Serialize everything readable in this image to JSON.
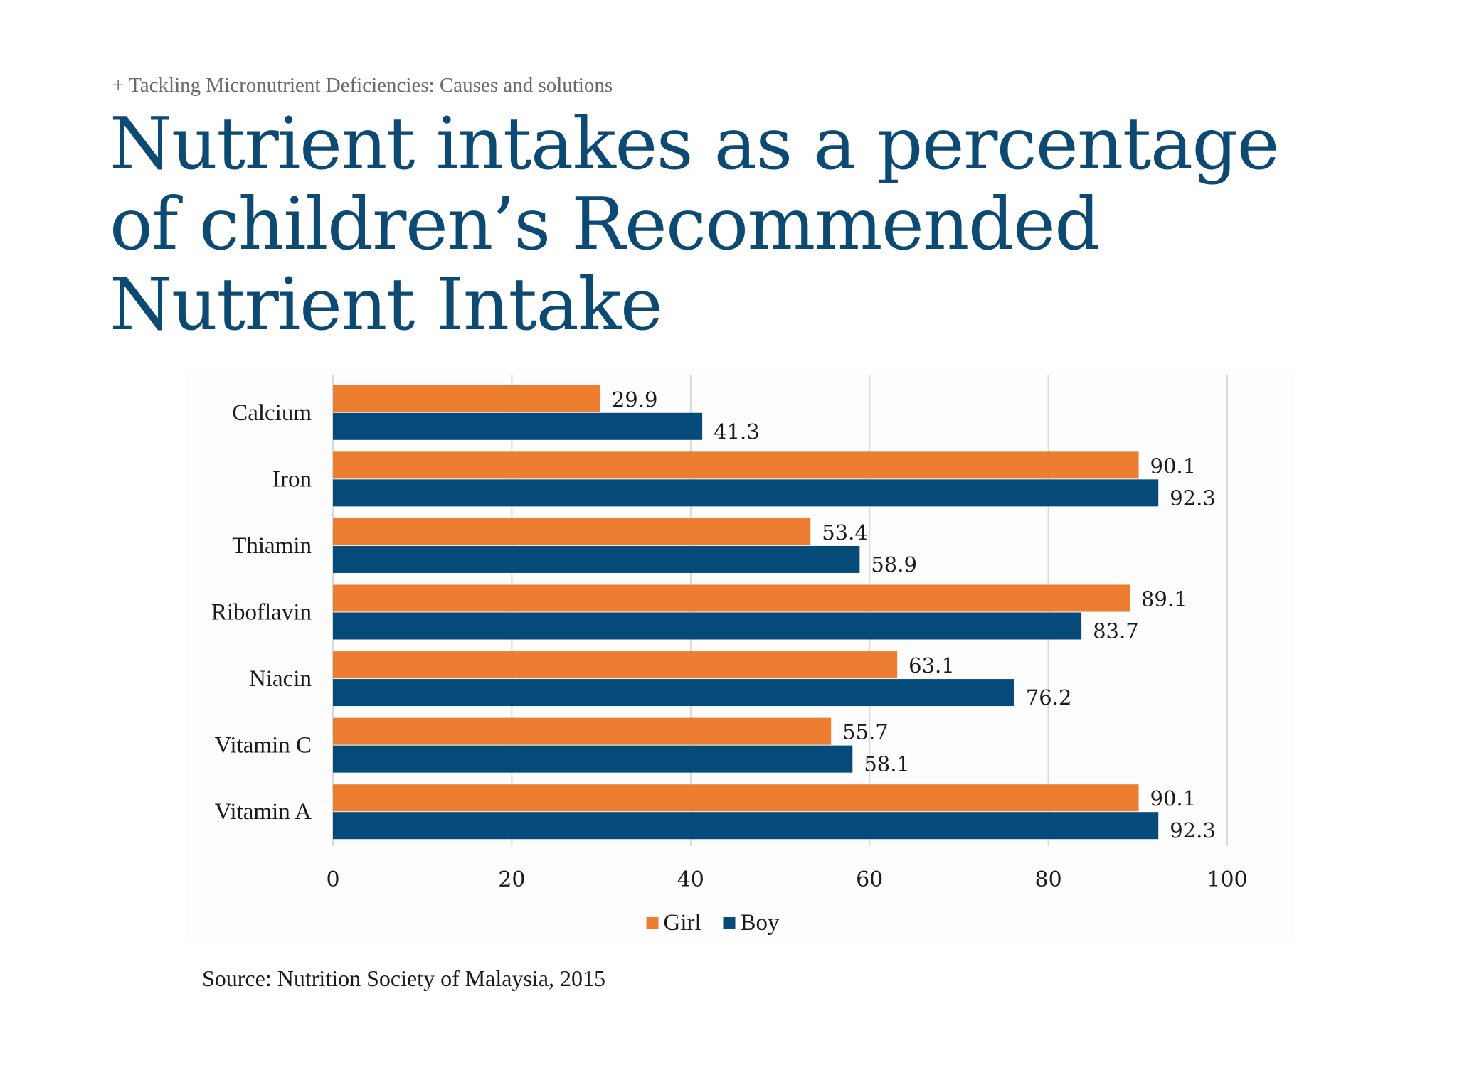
{
  "kicker": "+ Tackling Micronutrient Deficiencies: Causes and solutions",
  "title": "Nutrient intakes as a percentage of children’s Recommended Nutrient Intake",
  "source": "Source: Nutrition Society of Malaysia, 2015",
  "colors": {
    "title": "#0d4a73",
    "girl": "#ed7d31",
    "boy": "#054a78",
    "grid": "#d9d9d9"
  },
  "chart_data": {
    "type": "bar",
    "orientation": "horizontal",
    "categories": [
      "Calcium",
      "Iron",
      "Thiamin",
      "Riboflavin",
      "Niacin",
      "Vitamin C",
      "Vitamin A"
    ],
    "series": [
      {
        "name": "Girl",
        "values": [
          29.9,
          90.1,
          53.4,
          89.1,
          63.1,
          55.7,
          90.1
        ]
      },
      {
        "name": "Boy",
        "values": [
          41.3,
          92.3,
          58.9,
          83.7,
          76.2,
          58.1,
          92.3
        ]
      }
    ],
    "data_labels": {
      "Girl": [
        "29.9",
        "90.1",
        "53.4",
        "89.1",
        "63.1",
        "55.7",
        "90.1"
      ],
      "Boy": [
        "41.3",
        "92.3",
        "58.9",
        "83.7",
        "76.2",
        "58.1",
        "92.3"
      ]
    },
    "xlim": [
      0,
      100
    ],
    "xticks": [
      0,
      20,
      40,
      60,
      80,
      100
    ],
    "xtick_labels": [
      "0",
      "20",
      "40",
      "60",
      "80",
      "100"
    ],
    "grid": true,
    "legend": "bottom"
  }
}
